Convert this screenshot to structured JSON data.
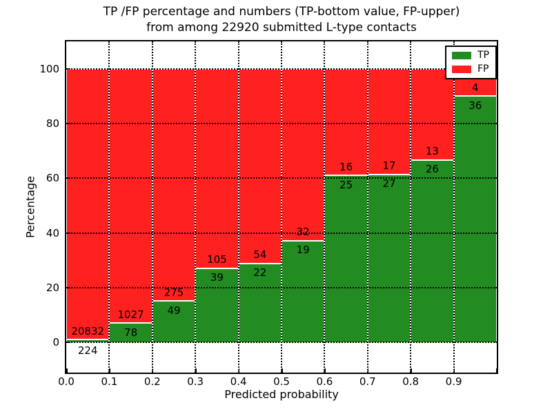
{
  "title": {
    "line1": "TP /FP percentage and numbers (TP-bottom value, FP-upper)",
    "line2": "from among 22920 submitted L-type contacts"
  },
  "axes": {
    "xlabel": "Predicted probability",
    "ylabel": "Percentage"
  },
  "chart_data": {
    "type": "bar",
    "stacked": true,
    "units": "percent_of_bin",
    "title": "TP /FP percentage and numbers (TP-bottom value, FP-upper) from among 22920 submitted L-type contacts",
    "xlabel": "Predicted probability",
    "ylabel": "Percentage",
    "total_contacts": 22920,
    "categories": [
      "0.0",
      "0.1",
      "0.2",
      "0.3",
      "0.4",
      "0.5",
      "0.6",
      "0.7",
      "0.8",
      "0.9"
    ],
    "bin_width": 0.1,
    "series": [
      {
        "name": "TP",
        "color": "#228b22",
        "values": [
          224,
          78,
          49,
          39,
          22,
          19,
          25,
          27,
          26,
          36
        ]
      },
      {
        "name": "FP",
        "color": "#ff2020",
        "values": [
          20832,
          1027,
          275,
          105,
          54,
          32,
          16,
          17,
          13,
          4
        ]
      }
    ],
    "tp_percent": [
      1.06,
      7.06,
      15.12,
      27.08,
      28.95,
      37.25,
      60.98,
      61.36,
      66.67,
      90.0
    ],
    "yticks": [
      0,
      20,
      40,
      60,
      80,
      100
    ],
    "xticks": [
      "0.0",
      "0.1",
      "0.2",
      "0.3",
      "0.4",
      "0.5",
      "0.6",
      "0.7",
      "0.8",
      "0.9"
    ],
    "ylim": [
      -11,
      110
    ],
    "xlim": [
      0.0,
      1.0
    ],
    "grid": true,
    "grid_style": "dotted",
    "legend_position": "upper right"
  }
}
